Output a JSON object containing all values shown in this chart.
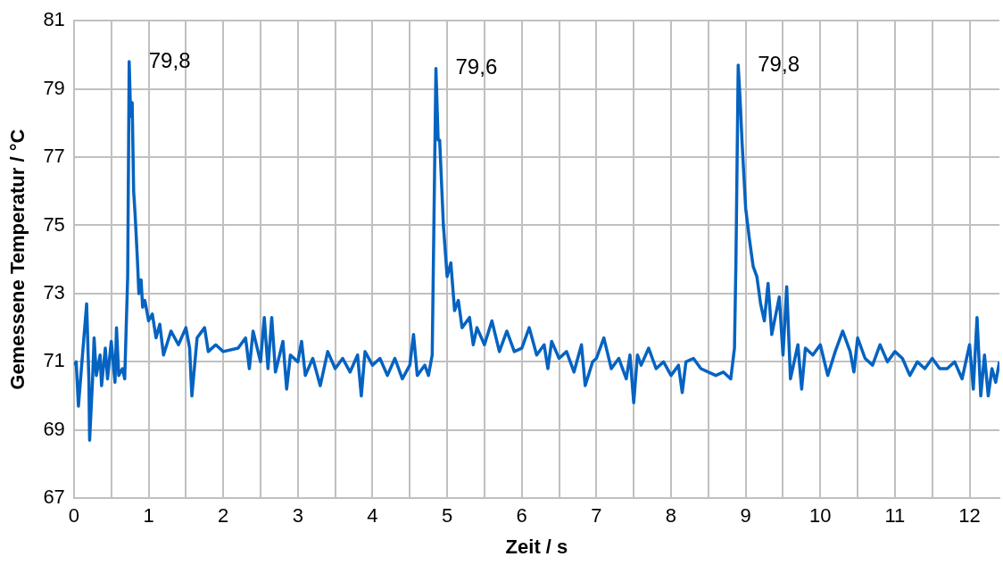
{
  "chart_data": {
    "type": "line",
    "xlabel": "Zeit / s",
    "ylabel": "Gemessene Temperatur / °C",
    "xlim": [
      0,
      12.4
    ],
    "ylim": [
      67,
      81
    ],
    "xticks": [
      0,
      {
        "value": 0.5,
        "label": null
      },
      1,
      {
        "value": 1.5,
        "label": null
      },
      2,
      {
        "value": 2.5,
        "label": null
      },
      3,
      {
        "value": 3.5,
        "label": null
      },
      4,
      {
        "value": 4.5,
        "label": null
      },
      5,
      {
        "value": 5.5,
        "label": null
      },
      6,
      {
        "value": 6.5,
        "label": null
      },
      7,
      {
        "value": 7.5,
        "label": null
      },
      8,
      {
        "value": 8.5,
        "label": null
      },
      9,
      {
        "value": 9.5,
        "label": null
      },
      10,
      {
        "value": 10.5,
        "label": null
      },
      11,
      {
        "value": 11.5,
        "label": null
      },
      12
    ],
    "yticks": [
      67,
      69,
      71,
      73,
      75,
      77,
      79,
      81
    ],
    "grid": true,
    "marker": "none",
    "line_style": "solid",
    "annotations": [
      {
        "text": "79,8",
        "x": 0.74,
        "y": 79.8
      },
      {
        "text": "79,6",
        "x": 4.85,
        "y": 79.6
      },
      {
        "text": "79,8",
        "x": 8.9,
        "y": 79.7
      }
    ],
    "series": [
      {
        "color": "#0563c1",
        "x": [
          0,
          0.03,
          0.06,
          0.1,
          0.17,
          0.2,
          0.21,
          0.25,
          0.27,
          0.3,
          0.35,
          0.37,
          0.42,
          0.45,
          0.5,
          0.55,
          0.57,
          0.6,
          0.65,
          0.68,
          0.72,
          0.74,
          0.76,
          0.78,
          0.8,
          0.82,
          0.85,
          0.87,
          0.9,
          0.92,
          0.95,
          1,
          1.05,
          1.1,
          1.15,
          1.2,
          1.3,
          1.4,
          1.5,
          1.55,
          1.58,
          1.65,
          1.75,
          1.8,
          1.9,
          2,
          2.2,
          2.3,
          2.35,
          2.4,
          2.5,
          2.55,
          2.6,
          2.65,
          2.7,
          2.8,
          2.85,
          2.9,
          3,
          3.05,
          3.1,
          3.2,
          3.3,
          3.4,
          3.5,
          3.6,
          3.7,
          3.8,
          3.85,
          3.9,
          4,
          4.1,
          4.2,
          4.3,
          4.4,
          4.5,
          4.55,
          4.6,
          4.7,
          4.75,
          4.8,
          4.85,
          4.88,
          4.9,
          4.95,
          5,
          5.05,
          5.1,
          5.15,
          5.2,
          5.3,
          5.35,
          5.4,
          5.5,
          5.6,
          5.7,
          5.8,
          5.9,
          6,
          6.1,
          6.2,
          6.3,
          6.35,
          6.4,
          6.5,
          6.6,
          6.7,
          6.8,
          6.85,
          6.95,
          7,
          7.1,
          7.2,
          7.3,
          7.4,
          7.45,
          7.5,
          7.55,
          7.6,
          7.7,
          7.8,
          7.9,
          8,
          8.1,
          8.15,
          8.2,
          8.3,
          8.4,
          8.5,
          8.6,
          8.7,
          8.8,
          8.85,
          8.87,
          8.9,
          8.93,
          8.95,
          9,
          9.05,
          9.1,
          9.15,
          9.2,
          9.25,
          9.3,
          9.35,
          9.45,
          9.5,
          9.55,
          9.6,
          9.7,
          9.75,
          9.8,
          9.9,
          10,
          10.1,
          10.2,
          10.3,
          10.4,
          10.45,
          10.5,
          10.6,
          10.7,
          10.8,
          10.9,
          11,
          11.1,
          11.2,
          11.3,
          11.4,
          11.5,
          11.6,
          11.7,
          11.8,
          11.9,
          12,
          12.05,
          12.1,
          12.15,
          12.2,
          12.25,
          12.3,
          12.35,
          12.4
        ],
        "values": [
          70.9,
          71.0,
          69.7,
          70.8,
          72.7,
          70.5,
          68.7,
          70.5,
          71.7,
          70.6,
          71.2,
          70.3,
          71.4,
          70.5,
          71.6,
          70.4,
          72.0,
          70.6,
          70.8,
          70.5,
          73.5,
          79.8,
          78.2,
          78.6,
          76.0,
          75.3,
          74.0,
          73.0,
          73.4,
          72.6,
          72.8,
          72.2,
          72.4,
          71.7,
          72.1,
          71.2,
          71.9,
          71.5,
          72.0,
          71.4,
          70.0,
          71.7,
          72.0,
          71.3,
          71.5,
          71.3,
          71.4,
          71.7,
          70.8,
          71.9,
          71.0,
          72.3,
          70.8,
          72.3,
          70.7,
          71.6,
          70.2,
          71.2,
          71.0,
          71.6,
          70.6,
          71.1,
          70.3,
          71.3,
          70.8,
          71.1,
          70.7,
          71.2,
          70.0,
          71.3,
          70.9,
          71.1,
          70.6,
          71.1,
          70.5,
          70.9,
          71.8,
          70.6,
          70.9,
          70.6,
          71.2,
          79.6,
          77.5,
          77.5,
          75.0,
          73.5,
          73.9,
          72.5,
          72.8,
          72.0,
          72.3,
          71.5,
          72.0,
          71.5,
          72.2,
          71.3,
          71.9,
          71.3,
          71.4,
          72.0,
          71.2,
          71.5,
          70.8,
          71.6,
          71.1,
          71.3,
          70.7,
          71.5,
          70.3,
          71.0,
          71.1,
          71.7,
          70.8,
          71.1,
          70.5,
          71.2,
          69.8,
          71.2,
          70.9,
          71.4,
          70.8,
          71.0,
          70.6,
          70.9,
          70.1,
          71.0,
          71.1,
          70.8,
          70.7,
          70.6,
          70.7,
          70.5,
          71.4,
          74.0,
          79.7,
          78.5,
          77.5,
          75.5,
          74.6,
          73.8,
          73.5,
          72.7,
          72.2,
          73.3,
          71.8,
          72.9,
          71.2,
          73.2,
          70.5,
          71.5,
          70.2,
          71.4,
          71.2,
          71.5,
          70.6,
          71.3,
          71.9,
          71.3,
          70.7,
          71.7,
          71.1,
          70.9,
          71.5,
          71.0,
          71.3,
          71.1,
          70.6,
          71.0,
          70.8,
          71.1,
          70.8,
          70.8,
          71.0,
          70.5,
          71.5,
          70.2,
          72.3,
          70.0,
          71.2,
          70.0,
          70.8,
          70.4,
          71.0
        ]
      }
    ]
  }
}
